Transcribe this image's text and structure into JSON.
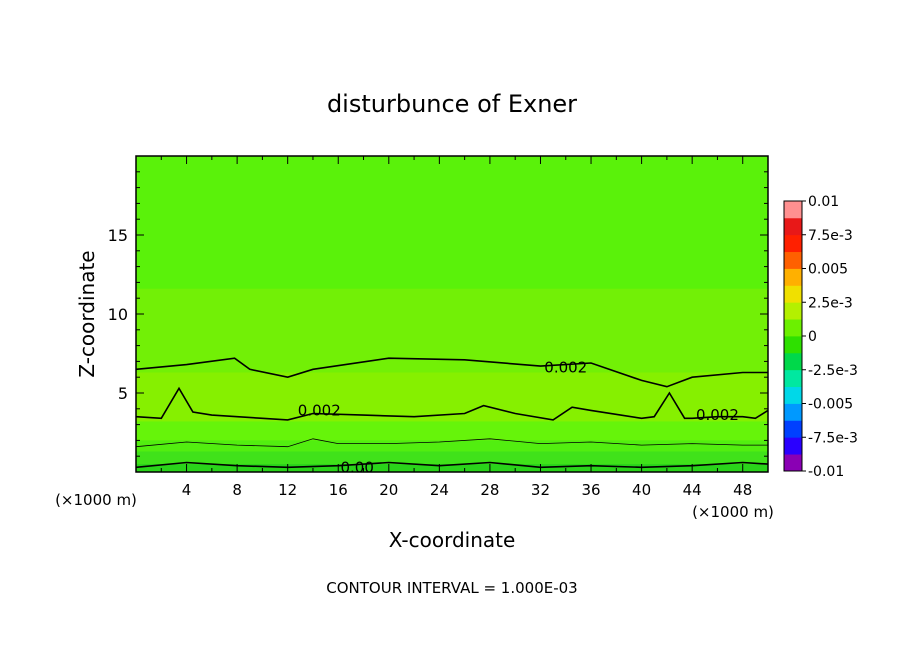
{
  "chart_data": {
    "type": "heatmap",
    "title": "disturbunce of Exner",
    "xlabel": "X-coordinate",
    "ylabel": "Z-coordinate",
    "x_unit_left": "(×1000 m)",
    "x_unit_right": "(×1000 m)",
    "xlim": [
      0,
      50
    ],
    "ylim": [
      0,
      20
    ],
    "x_ticks": [
      "4",
      "8",
      "12",
      "16",
      "20",
      "24",
      "28",
      "32",
      "36",
      "40",
      "44",
      "48"
    ],
    "y_ticks": [
      "5",
      "10",
      "15"
    ],
    "footer": "CONTOUR INTERVAL = 1.000E-03",
    "colorbar": {
      "labels": [
        "0.01",
        "7.5e-3",
        "0.005",
        "2.5e-3",
        "0",
        "-2.5e-3",
        "-0.005",
        "-7.5e-3",
        "-0.01"
      ],
      "range": [
        -0.01,
        0.01
      ],
      "colors": [
        "#8a00b4",
        "#2a00ff",
        "#0040ff",
        "#0099ff",
        "#00d8e8",
        "#00e8a0",
        "#00d84a",
        "#2ee000",
        "#6cf000",
        "#b4f000",
        "#f0e000",
        "#ffb000",
        "#ff6000",
        "#ff2000",
        "#e81818",
        "#ff9090"
      ]
    },
    "field_levels": [
      {
        "z_max": 0.5,
        "value": -0.001,
        "color": "#2ad41a"
      },
      {
        "z_max": 1.3,
        "value": 0.0,
        "color": "#40e21a"
      },
      {
        "z_max": 2.0,
        "value": 0.0005,
        "color": "#52ee10"
      },
      {
        "z_max": 3.2,
        "value": 0.001,
        "color": "#66f40a"
      },
      {
        "z_max": 6.3,
        "value": 0.002,
        "color": "#86f000"
      },
      {
        "z_max": 11.6,
        "value": 0.0015,
        "color": "#72f006"
      },
      {
        "z_max": 20.0,
        "value": 0.001,
        "color": "#5af20a"
      }
    ],
    "contour_labels": [
      {
        "text": "0.002",
        "x": 34.0,
        "z": 6.6
      },
      {
        "text": "0.002",
        "x": 14.5,
        "z": 3.9
      },
      {
        "text": "0.002",
        "x": 46.0,
        "z": 3.6
      },
      {
        "text": "0.00",
        "x": 17.5,
        "z": 0.3
      }
    ],
    "contours": [
      {
        "name": "upper",
        "x": [
          0,
          4,
          7.8,
          9,
          12,
          14,
          20,
          26,
          32,
          36,
          40,
          42,
          44,
          48,
          50
        ],
        "z": [
          6.5,
          6.8,
          7.2,
          6.5,
          6.0,
          6.5,
          7.2,
          7.1,
          6.7,
          6.9,
          5.8,
          5.4,
          6.0,
          6.3,
          6.3
        ]
      },
      {
        "name": "middle",
        "x": [
          0,
          2,
          3.4,
          4.5,
          6,
          10,
          12,
          14,
          18,
          22,
          26,
          27.5,
          30,
          33,
          34.5,
          36,
          40,
          41,
          42.2,
          43.4,
          44,
          46,
          48,
          49,
          50
        ],
        "z": [
          3.5,
          3.4,
          5.3,
          3.8,
          3.6,
          3.4,
          3.3,
          3.7,
          3.6,
          3.5,
          3.7,
          4.2,
          3.7,
          3.3,
          4.1,
          3.9,
          3.4,
          3.5,
          5.0,
          3.4,
          3.4,
          3.5,
          3.5,
          3.4,
          3.9
        ]
      },
      {
        "name": "lower-thin",
        "x": [
          0,
          4,
          8,
          12,
          14,
          16,
          20,
          24,
          28,
          32,
          36,
          40,
          44,
          48,
          50
        ],
        "z": [
          1.6,
          1.9,
          1.7,
          1.6,
          2.1,
          1.8,
          1.8,
          1.9,
          2.1,
          1.8,
          1.9,
          1.7,
          1.8,
          1.7,
          1.7
        ]
      },
      {
        "name": "bottom",
        "x": [
          0,
          4,
          8,
          12,
          16,
          20,
          24,
          28,
          32,
          36,
          40,
          44,
          48,
          50
        ],
        "z": [
          0.3,
          0.6,
          0.4,
          0.3,
          0.4,
          0.6,
          0.4,
          0.6,
          0.3,
          0.4,
          0.3,
          0.4,
          0.6,
          0.5
        ]
      }
    ]
  }
}
